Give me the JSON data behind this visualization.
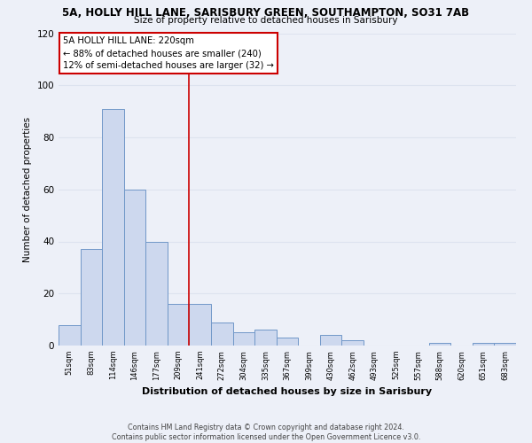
{
  "title": "5A, HOLLY HILL LANE, SARISBURY GREEN, SOUTHAMPTON, SO31 7AB",
  "subtitle": "Size of property relative to detached houses in Sarisbury",
  "xlabel": "Distribution of detached houses by size in Sarisbury",
  "ylabel": "Number of detached properties",
  "bar_labels": [
    "51sqm",
    "83sqm",
    "114sqm",
    "146sqm",
    "177sqm",
    "209sqm",
    "241sqm",
    "272sqm",
    "304sqm",
    "335sqm",
    "367sqm",
    "399sqm",
    "430sqm",
    "462sqm",
    "493sqm",
    "525sqm",
    "557sqm",
    "588sqm",
    "620sqm",
    "651sqm",
    "683sqm"
  ],
  "bar_values": [
    8,
    37,
    91,
    60,
    40,
    16,
    16,
    9,
    5,
    6,
    3,
    0,
    4,
    2,
    0,
    0,
    0,
    1,
    0,
    1,
    1
  ],
  "bar_color": "#cdd8ee",
  "bar_edge_color": "#7097c8",
  "ylim": [
    0,
    120
  ],
  "yticks": [
    0,
    20,
    40,
    60,
    80,
    100,
    120
  ],
  "vline_x_index": 5.5,
  "property_line_label": "5A HOLLY HILL LANE: 220sqm",
  "annotation_line1": "← 88% of detached houses are smaller (240)",
  "annotation_line2": "12% of semi-detached houses are larger (32) →",
  "annotation_box_color": "#ffffff",
  "annotation_box_edge_color": "#cc0000",
  "vline_color": "#cc0000",
  "footer_line1": "Contains HM Land Registry data © Crown copyright and database right 2024.",
  "footer_line2": "Contains public sector information licensed under the Open Government Licence v3.0.",
  "background_color": "#edf0f8",
  "grid_color": "#dde3ef"
}
